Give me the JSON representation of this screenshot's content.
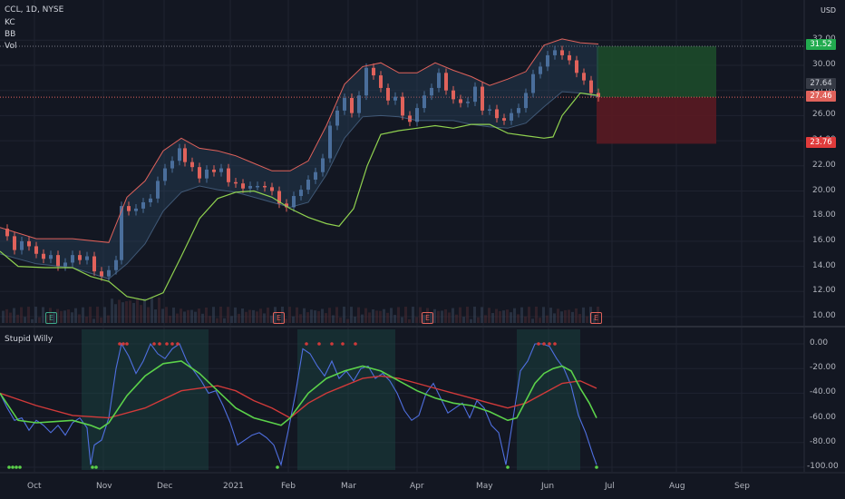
{
  "chart_header": {
    "symbol_line": "CCL, 1D, NYSE",
    "indicators": [
      "KC",
      "BB",
      "Vol"
    ],
    "oscillator_label": "Stupid Willy",
    "currency": "USD"
  },
  "colors": {
    "background": "#131722",
    "grid": "#1f2330",
    "candle_up": "#4a6e9b",
    "candle_down": "#e0625b",
    "kc_band": "#e0625b",
    "bb_band": "#8fd14f",
    "long_profit_zone": "#1d4a2a",
    "long_loss_zone": "#5a1a22",
    "osc_line": "#4f6fe0",
    "osc_signal_up": "#5bd14a",
    "osc_signal_down": "#d13a3a"
  },
  "price_tags": {
    "target": "31.52",
    "current_a": "27.64",
    "current_b": "27.46",
    "stop": "23.76"
  },
  "price_axis_labels": [
    "32.00",
    "30.00",
    "28.00",
    "26.00",
    "24.00",
    "22.00",
    "20.00",
    "18.00",
    "16.00",
    "14.00",
    "12.00",
    "10.00"
  ],
  "osc_axis_labels": [
    "0.00",
    "-20.00",
    "-40.00",
    "-60.00",
    "-80.00",
    "-100.00"
  ],
  "time_axis_labels": [
    "Oct",
    "Nov",
    "Dec",
    "2021",
    "Feb",
    "Mar",
    "Apr",
    "May",
    "Jun",
    "Jul",
    "Aug",
    "Sep"
  ],
  "earnings_markers": [
    "E",
    "E",
    "E",
    "E"
  ],
  "chart_data": {
    "type": "candlestick",
    "title": "CCL, 1D, NYSE",
    "y_range": [
      10,
      33
    ],
    "osc_range": [
      -105,
      5
    ],
    "x_categories": [
      "Oct",
      "Nov",
      "Dec",
      "2021",
      "Feb",
      "Mar",
      "Apr",
      "May",
      "Jun",
      "Jul",
      "Aug",
      "Sep"
    ],
    "price_points": [
      [
        0,
        17.0
      ],
      [
        8,
        16.4
      ],
      [
        16,
        15.3
      ],
      [
        24,
        16.0
      ],
      [
        32,
        15.6
      ],
      [
        40,
        15.0
      ],
      [
        48,
        14.6
      ],
      [
        56,
        14.9
      ],
      [
        64,
        14.0
      ],
      [
        72,
        14.3
      ],
      [
        80,
        14.9
      ],
      [
        88,
        14.5
      ],
      [
        96,
        14.8
      ],
      [
        104,
        13.6
      ],
      [
        112,
        13.2
      ],
      [
        120,
        13.7
      ],
      [
        128,
        14.5
      ],
      [
        134,
        18.8
      ],
      [
        142,
        18.4
      ],
      [
        150,
        18.6
      ],
      [
        158,
        19.1
      ],
      [
        166,
        19.4
      ],
      [
        174,
        20.8
      ],
      [
        182,
        21.8
      ],
      [
        190,
        22.4
      ],
      [
        198,
        23.4
      ],
      [
        204,
        22.3
      ],
      [
        212,
        21.9
      ],
      [
        220,
        21.0
      ],
      [
        228,
        21.7
      ],
      [
        236,
        21.5
      ],
      [
        244,
        21.8
      ],
      [
        252,
        20.7
      ],
      [
        260,
        20.6
      ],
      [
        268,
        20.2
      ],
      [
        276,
        20.4
      ],
      [
        284,
        20.4
      ],
      [
        292,
        20.3
      ],
      [
        300,
        20.0
      ],
      [
        308,
        19.0
      ],
      [
        316,
        18.7
      ],
      [
        324,
        19.6
      ],
      [
        332,
        20.1
      ],
      [
        340,
        20.9
      ],
      [
        348,
        21.5
      ],
      [
        356,
        22.6
      ],
      [
        364,
        25.2
      ],
      [
        372,
        26.4
      ],
      [
        380,
        27.4
      ],
      [
        388,
        26.2
      ],
      [
        396,
        27.6
      ],
      [
        404,
        29.8
      ],
      [
        412,
        29.2
      ],
      [
        420,
        28.2
      ],
      [
        428,
        27.2
      ],
      [
        436,
        27.5
      ],
      [
        444,
        26.0
      ],
      [
        452,
        25.5
      ],
      [
        460,
        26.6
      ],
      [
        468,
        27.6
      ],
      [
        476,
        28.2
      ],
      [
        484,
        29.4
      ],
      [
        492,
        28.0
      ],
      [
        500,
        27.3
      ],
      [
        508,
        27.0
      ],
      [
        516,
        27.1
      ],
      [
        524,
        28.3
      ],
      [
        532,
        26.4
      ],
      [
        540,
        26.5
      ],
      [
        548,
        25.8
      ],
      [
        556,
        25.6
      ],
      [
        564,
        26.2
      ],
      [
        572,
        26.6
      ],
      [
        580,
        27.8
      ],
      [
        588,
        29.3
      ],
      [
        596,
        29.9
      ],
      [
        604,
        30.8
      ],
      [
        612,
        31.2
      ],
      [
        620,
        30.8
      ],
      [
        628,
        30.4
      ],
      [
        636,
        29.4
      ],
      [
        644,
        28.8
      ],
      [
        652,
        27.8
      ],
      [
        660,
        27.46
      ]
    ],
    "kc_upper": [
      [
        0,
        17.1
      ],
      [
        40,
        16.2
      ],
      [
        80,
        16.2
      ],
      [
        120,
        15.9
      ],
      [
        140,
        19.5
      ],
      [
        160,
        20.8
      ],
      [
        180,
        23.2
      ],
      [
        200,
        24.2
      ],
      [
        220,
        23.4
      ],
      [
        240,
        23.2
      ],
      [
        260,
        22.8
      ],
      [
        280,
        22.2
      ],
      [
        300,
        21.6
      ],
      [
        320,
        21.6
      ],
      [
        340,
        22.4
      ],
      [
        360,
        25.2
      ],
      [
        380,
        28.5
      ],
      [
        400,
        29.9
      ],
      [
        420,
        30.2
      ],
      [
        440,
        29.4
      ],
      [
        460,
        29.4
      ],
      [
        480,
        30.2
      ],
      [
        500,
        29.6
      ],
      [
        520,
        29.1
      ],
      [
        540,
        28.4
      ],
      [
        560,
        28.9
      ],
      [
        580,
        29.5
      ],
      [
        600,
        31.6
      ],
      [
        620,
        32.1
      ],
      [
        640,
        31.8
      ],
      [
        660,
        31.7
      ]
    ],
    "kc_lower": [
      [
        0,
        15.0
      ],
      [
        40,
        14.2
      ],
      [
        80,
        13.9
      ],
      [
        120,
        13.0
      ],
      [
        140,
        14.2
      ],
      [
        160,
        15.8
      ],
      [
        180,
        18.4
      ],
      [
        200,
        19.9
      ],
      [
        220,
        20.4
      ],
      [
        240,
        20.1
      ],
      [
        260,
        19.9
      ],
      [
        280,
        19.5
      ],
      [
        300,
        19.1
      ],
      [
        320,
        18.7
      ],
      [
        340,
        19.1
      ],
      [
        360,
        21.3
      ],
      [
        380,
        24.2
      ],
      [
        400,
        25.9
      ],
      [
        420,
        26.0
      ],
      [
        440,
        25.9
      ],
      [
        460,
        25.6
      ],
      [
        480,
        25.6
      ],
      [
        500,
        25.6
      ],
      [
        520,
        25.3
      ],
      [
        540,
        25.1
      ],
      [
        560,
        25.0
      ],
      [
        580,
        25.4
      ],
      [
        600,
        26.7
      ],
      [
        620,
        27.9
      ],
      [
        640,
        27.8
      ],
      [
        660,
        27.5
      ]
    ],
    "bb_lower": [
      [
        0,
        15.2
      ],
      [
        20,
        14.0
      ],
      [
        50,
        13.9
      ],
      [
        80,
        13.9
      ],
      [
        100,
        13.2
      ],
      [
        120,
        12.8
      ],
      [
        140,
        11.6
      ],
      [
        160,
        11.3
      ],
      [
        180,
        11.9
      ],
      [
        200,
        14.8
      ],
      [
        220,
        17.8
      ],
      [
        240,
        19.4
      ],
      [
        260,
        19.9
      ],
      [
        280,
        20.0
      ],
      [
        300,
        19.5
      ],
      [
        320,
        18.6
      ],
      [
        340,
        17.9
      ],
      [
        360,
        17.4
      ],
      [
        374,
        17.2
      ],
      [
        390,
        18.6
      ],
      [
        405,
        22.0
      ],
      [
        420,
        24.5
      ],
      [
        440,
        24.8
      ],
      [
        460,
        25.0
      ],
      [
        480,
        25.2
      ],
      [
        500,
        25.0
      ],
      [
        520,
        25.3
      ],
      [
        540,
        25.3
      ],
      [
        560,
        24.6
      ],
      [
        580,
        24.4
      ],
      [
        600,
        24.2
      ],
      [
        610,
        24.3
      ],
      [
        620,
        26.0
      ],
      [
        640,
        27.8
      ],
      [
        660,
        27.6
      ]
    ],
    "osc_line": [
      [
        0,
        -40
      ],
      [
        8,
        -52
      ],
      [
        16,
        -62
      ],
      [
        24,
        -60
      ],
      [
        32,
        -70
      ],
      [
        40,
        -62
      ],
      [
        48,
        -66
      ],
      [
        56,
        -72
      ],
      [
        64,
        -66
      ],
      [
        72,
        -74
      ],
      [
        80,
        -64
      ],
      [
        88,
        -60
      ],
      [
        96,
        -68
      ],
      [
        100,
        -98
      ],
      [
        104,
        -82
      ],
      [
        112,
        -78
      ],
      [
        120,
        -60
      ],
      [
        128,
        -20
      ],
      [
        134,
        0
      ],
      [
        142,
        -10
      ],
      [
        150,
        -24
      ],
      [
        158,
        -14
      ],
      [
        166,
        0
      ],
      [
        174,
        -8
      ],
      [
        182,
        -12
      ],
      [
        190,
        -4
      ],
      [
        198,
        0
      ],
      [
        206,
        -14
      ],
      [
        214,
        -22
      ],
      [
        222,
        -30
      ],
      [
        230,
        -40
      ],
      [
        238,
        -38
      ],
      [
        246,
        -50
      ],
      [
        254,
        -64
      ],
      [
        262,
        -82
      ],
      [
        270,
        -78
      ],
      [
        278,
        -74
      ],
      [
        286,
        -72
      ],
      [
        294,
        -76
      ],
      [
        302,
        -82
      ],
      [
        310,
        -98
      ],
      [
        318,
        -70
      ],
      [
        326,
        -40
      ],
      [
        334,
        -4
      ],
      [
        342,
        -8
      ],
      [
        350,
        -18
      ],
      [
        358,
        -26
      ],
      [
        366,
        -14
      ],
      [
        374,
        -28
      ],
      [
        382,
        -22
      ],
      [
        390,
        -30
      ],
      [
        398,
        -20
      ],
      [
        406,
        -18
      ],
      [
        414,
        -28
      ],
      [
        422,
        -24
      ],
      [
        430,
        -30
      ],
      [
        438,
        -40
      ],
      [
        446,
        -54
      ],
      [
        454,
        -62
      ],
      [
        462,
        -58
      ],
      [
        470,
        -40
      ],
      [
        478,
        -32
      ],
      [
        486,
        -44
      ],
      [
        494,
        -56
      ],
      [
        502,
        -52
      ],
      [
        510,
        -48
      ],
      [
        518,
        -60
      ],
      [
        526,
        -46
      ],
      [
        534,
        -52
      ],
      [
        542,
        -66
      ],
      [
        550,
        -72
      ],
      [
        558,
        -98
      ],
      [
        566,
        -60
      ],
      [
        574,
        -22
      ],
      [
        582,
        -14
      ],
      [
        590,
        0
      ],
      [
        598,
        0
      ],
      [
        606,
        -2
      ],
      [
        614,
        -12
      ],
      [
        622,
        -20
      ],
      [
        630,
        -34
      ],
      [
        638,
        -58
      ],
      [
        646,
        -72
      ],
      [
        654,
        -90
      ],
      [
        658,
        -98
      ]
    ],
    "osc_signal": [
      [
        0,
        -40
      ],
      [
        20,
        -62
      ],
      [
        40,
        -64
      ],
      [
        60,
        -63
      ],
      [
        80,
        -62
      ],
      [
        100,
        -66
      ],
      [
        110,
        -69
      ],
      [
        120,
        -64
      ],
      [
        140,
        -42
      ],
      [
        160,
        -26
      ],
      [
        180,
        -16
      ],
      [
        200,
        -14
      ],
      [
        220,
        -24
      ],
      [
        240,
        -38
      ],
      [
        260,
        -52
      ],
      [
        280,
        -60
      ],
      [
        300,
        -64
      ],
      [
        310,
        -66
      ],
      [
        320,
        -60
      ],
      [
        340,
        -40
      ],
      [
        360,
        -28
      ],
      [
        380,
        -22
      ],
      [
        400,
        -18
      ],
      [
        420,
        -22
      ],
      [
        440,
        -30
      ],
      [
        460,
        -38
      ],
      [
        480,
        -44
      ],
      [
        500,
        -48
      ],
      [
        520,
        -50
      ],
      [
        540,
        -55
      ],
      [
        560,
        -62
      ],
      [
        570,
        -60
      ],
      [
        580,
        -46
      ],
      [
        590,
        -32
      ],
      [
        600,
        -24
      ],
      [
        610,
        -20
      ],
      [
        620,
        -18
      ],
      [
        630,
        -22
      ],
      [
        640,
        -36
      ],
      [
        650,
        -48
      ],
      [
        658,
        -60
      ]
    ],
    "osc_ma": [
      [
        0,
        -40
      ],
      [
        40,
        -50
      ],
      [
        80,
        -58
      ],
      [
        120,
        -60
      ],
      [
        160,
        -52
      ],
      [
        200,
        -38
      ],
      [
        240,
        -34
      ],
      [
        260,
        -38
      ],
      [
        280,
        -46
      ],
      [
        300,
        -52
      ],
      [
        320,
        -60
      ],
      [
        340,
        -48
      ],
      [
        360,
        -40
      ],
      [
        380,
        -34
      ],
      [
        400,
        -28
      ],
      [
        420,
        -26
      ],
      [
        440,
        -28
      ],
      [
        460,
        -32
      ],
      [
        480,
        -36
      ],
      [
        500,
        -40
      ],
      [
        520,
        -44
      ],
      [
        540,
        -48
      ],
      [
        560,
        -52
      ],
      [
        580,
        -48
      ],
      [
        600,
        -40
      ],
      [
        620,
        -32
      ],
      [
        640,
        -30
      ],
      [
        658,
        -36
      ]
    ]
  }
}
